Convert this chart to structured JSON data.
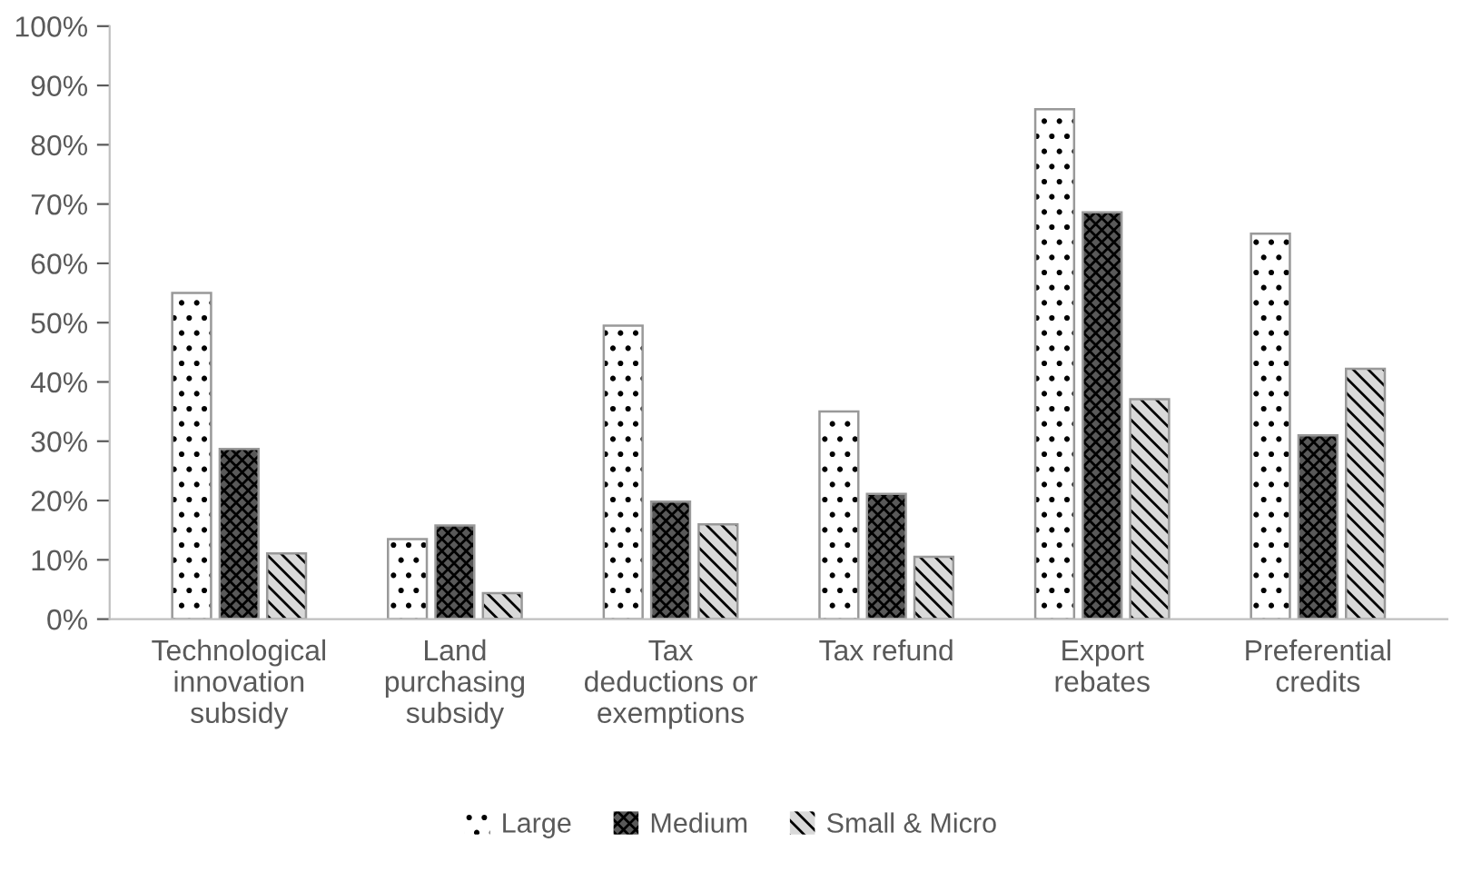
{
  "chart_data": {
    "type": "bar",
    "categories": [
      "Technological innovation subsidy",
      "Land purchasing subsidy",
      "Tax deductions or exemptions",
      "Tax refund",
      "Export rebates",
      "Preferential credits"
    ],
    "series": [
      {
        "name": "Large",
        "color": "#ffffff",
        "values": [
          55,
          13.5,
          49.5,
          35,
          86,
          65
        ]
      },
      {
        "name": "Medium",
        "color": "#595959",
        "values": [
          28.7,
          15.8,
          19.8,
          21.1,
          68.6,
          31
        ]
      },
      {
        "name": "Small & Micro",
        "color": "#d9d9d9",
        "values": [
          11.1,
          4.4,
          16,
          10.5,
          37.1,
          42.2
        ]
      }
    ],
    "ylim": [
      0,
      100
    ],
    "yticks": [
      {
        "value": 0,
        "label": "0%"
      },
      {
        "value": 10,
        "label": "10%"
      },
      {
        "value": 20,
        "label": "20%"
      },
      {
        "value": 30,
        "label": "30%"
      },
      {
        "value": 40,
        "label": "40%"
      },
      {
        "value": 50,
        "label": "50%"
      },
      {
        "value": 60,
        "label": "60%"
      },
      {
        "value": 70,
        "label": "70%"
      },
      {
        "value": 80,
        "label": "80%"
      },
      {
        "value": 90,
        "label": "90%"
      },
      {
        "value": 100,
        "label": "100%"
      }
    ],
    "grid": false,
    "legend": "bottom"
  }
}
